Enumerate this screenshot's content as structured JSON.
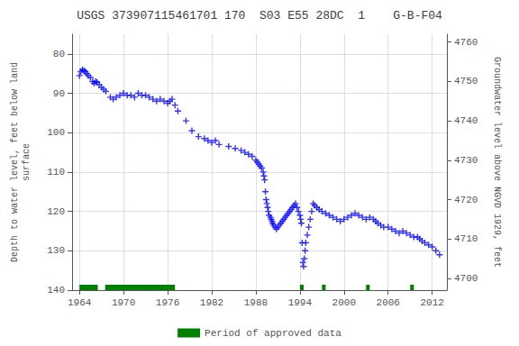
{
  "chart_data": {
    "type": "scatter",
    "title": "USGS 373907115461701 170  S03 E55 28DC  1    G-B-F04",
    "ylabel": "Depth to water level, feet below land\nsurface",
    "y2label": "Groundwater level above NGVD 1929, feet",
    "xlim": [
      1963,
      2014
    ],
    "xticks": [
      1964,
      1970,
      1976,
      1982,
      1988,
      1994,
      2000,
      2006,
      2012
    ],
    "ylim": [
      140,
      75
    ],
    "yticks": [
      80,
      90,
      100,
      110,
      120,
      130,
      140
    ],
    "y2lim": [
      4697,
      4762
    ],
    "y2ticks": [
      4700,
      4710,
      4720,
      4730,
      4740,
      4750,
      4760
    ],
    "grid": true,
    "legend": "bottom",
    "x": [
      1964.0,
      1964.2,
      1964.4,
      1964.6,
      1964.8,
      1965.0,
      1965.2,
      1965.5,
      1965.8,
      1966.0,
      1966.2,
      1966.4,
      1966.7,
      1967.0,
      1967.3,
      1967.6,
      1968.2,
      1968.6,
      1969.0,
      1969.5,
      1970.0,
      1970.5,
      1971.0,
      1971.5,
      1972.0,
      1972.5,
      1973.0,
      1973.5,
      1974.0,
      1974.5,
      1975.0,
      1975.5,
      1976.0,
      1976.3,
      1976.6,
      1977.0,
      1977.4,
      1978.5,
      1979.3,
      1980.2,
      1981.0,
      1981.5,
      1982.0,
      1982.5,
      1983.0,
      1984.3,
      1985.2,
      1986.0,
      1986.5,
      1987.0,
      1987.5,
      1988.0,
      1988.2,
      1988.4,
      1988.6,
      1988.8,
      1989.0,
      1989.1,
      1989.2,
      1989.3,
      1989.4,
      1989.5,
      1989.6,
      1989.7,
      1989.8,
      1990.0,
      1990.1,
      1990.2,
      1990.3,
      1990.4,
      1990.6,
      1990.8,
      1991.0,
      1991.2,
      1991.4,
      1991.6,
      1991.8,
      1992.0,
      1992.2,
      1992.4,
      1992.6,
      1992.8,
      1993.0,
      1993.2,
      1993.4,
      1993.6,
      1993.8,
      1994.0,
      1994.1,
      1994.2,
      1994.3,
      1994.4,
      1994.5,
      1994.6,
      1994.7,
      1994.8,
      1995.0,
      1995.2,
      1995.4,
      1995.6,
      1995.8,
      1996.0,
      1996.3,
      1996.6,
      1997.0,
      1997.5,
      1998.0,
      1998.5,
      1999.0,
      1999.5,
      2000.0,
      2000.5,
      2001.0,
      2001.5,
      2002.0,
      2002.5,
      2003.0,
      2003.5,
      2004.0,
      2004.3,
      2004.6,
      2005.0,
      2005.4,
      2006.0,
      2006.5,
      2007.0,
      2007.5,
      2008.0,
      2008.5,
      2009.0,
      2009.5,
      2010.0,
      2010.3,
      2010.6,
      2011.0,
      2011.5,
      2012.0,
      2012.5,
      2013.0
    ],
    "series": [
      {
        "color": "#0000ff",
        "marker": "+",
        "values": [
          85.5,
          84.5,
          84.0,
          84.2,
          84.5,
          85.0,
          85.5,
          86.0,
          87.0,
          87.5,
          87.0,
          87.2,
          87.8,
          88.5,
          89.0,
          89.5,
          91.0,
          91.5,
          91.0,
          90.5,
          90.0,
          90.5,
          90.5,
          91.0,
          90.0,
          90.5,
          90.5,
          91.0,
          91.5,
          92.0,
          91.5,
          92.0,
          92.5,
          92.0,
          91.5,
          93.0,
          94.5,
          97.0,
          99.5,
          101.0,
          101.5,
          102.0,
          102.5,
          102.0,
          103.0,
          103.5,
          104.0,
          104.5,
          105.0,
          105.5,
          106.0,
          107.0,
          107.5,
          108.0,
          108.5,
          109.0,
          110.0,
          111.0,
          112.0,
          115.0,
          117.0,
          118.0,
          119.0,
          120.0,
          121.0,
          121.5,
          122.0,
          122.5,
          123.0,
          123.5,
          124.0,
          124.5,
          124.0,
          123.5,
          123.0,
          122.5,
          122.0,
          121.5,
          121.0,
          120.5,
          120.0,
          119.5,
          119.0,
          118.5,
          118.0,
          119.0,
          120.0,
          121.0,
          122.0,
          123.0,
          128.0,
          133.0,
          134.0,
          132.0,
          130.0,
          128.0,
          126.0,
          124.0,
          122.0,
          120.0,
          118.0,
          118.5,
          119.0,
          119.5,
          120.0,
          120.5,
          121.0,
          121.5,
          122.0,
          122.5,
          122.0,
          121.5,
          121.0,
          120.5,
          121.0,
          121.5,
          122.0,
          121.5,
          122.0,
          122.5,
          123.0,
          123.5,
          124.0,
          124.0,
          124.5,
          125.0,
          125.5,
          125.0,
          125.5,
          126.0,
          126.5,
          126.5,
          127.0,
          127.5,
          128.0,
          128.5,
          129.0,
          130.0,
          131.0
        ]
      }
    ],
    "approved_periods": {
      "name": "Period of approved data",
      "color": "#008000",
      "ranges": [
        [
          1964,
          1966.5
        ],
        [
          1967.5,
          1977
        ],
        [
          1994,
          1994.5
        ],
        [
          1997,
          1997.5
        ],
        [
          2003,
          2003.5
        ],
        [
          2009,
          2009.5
        ]
      ]
    }
  }
}
